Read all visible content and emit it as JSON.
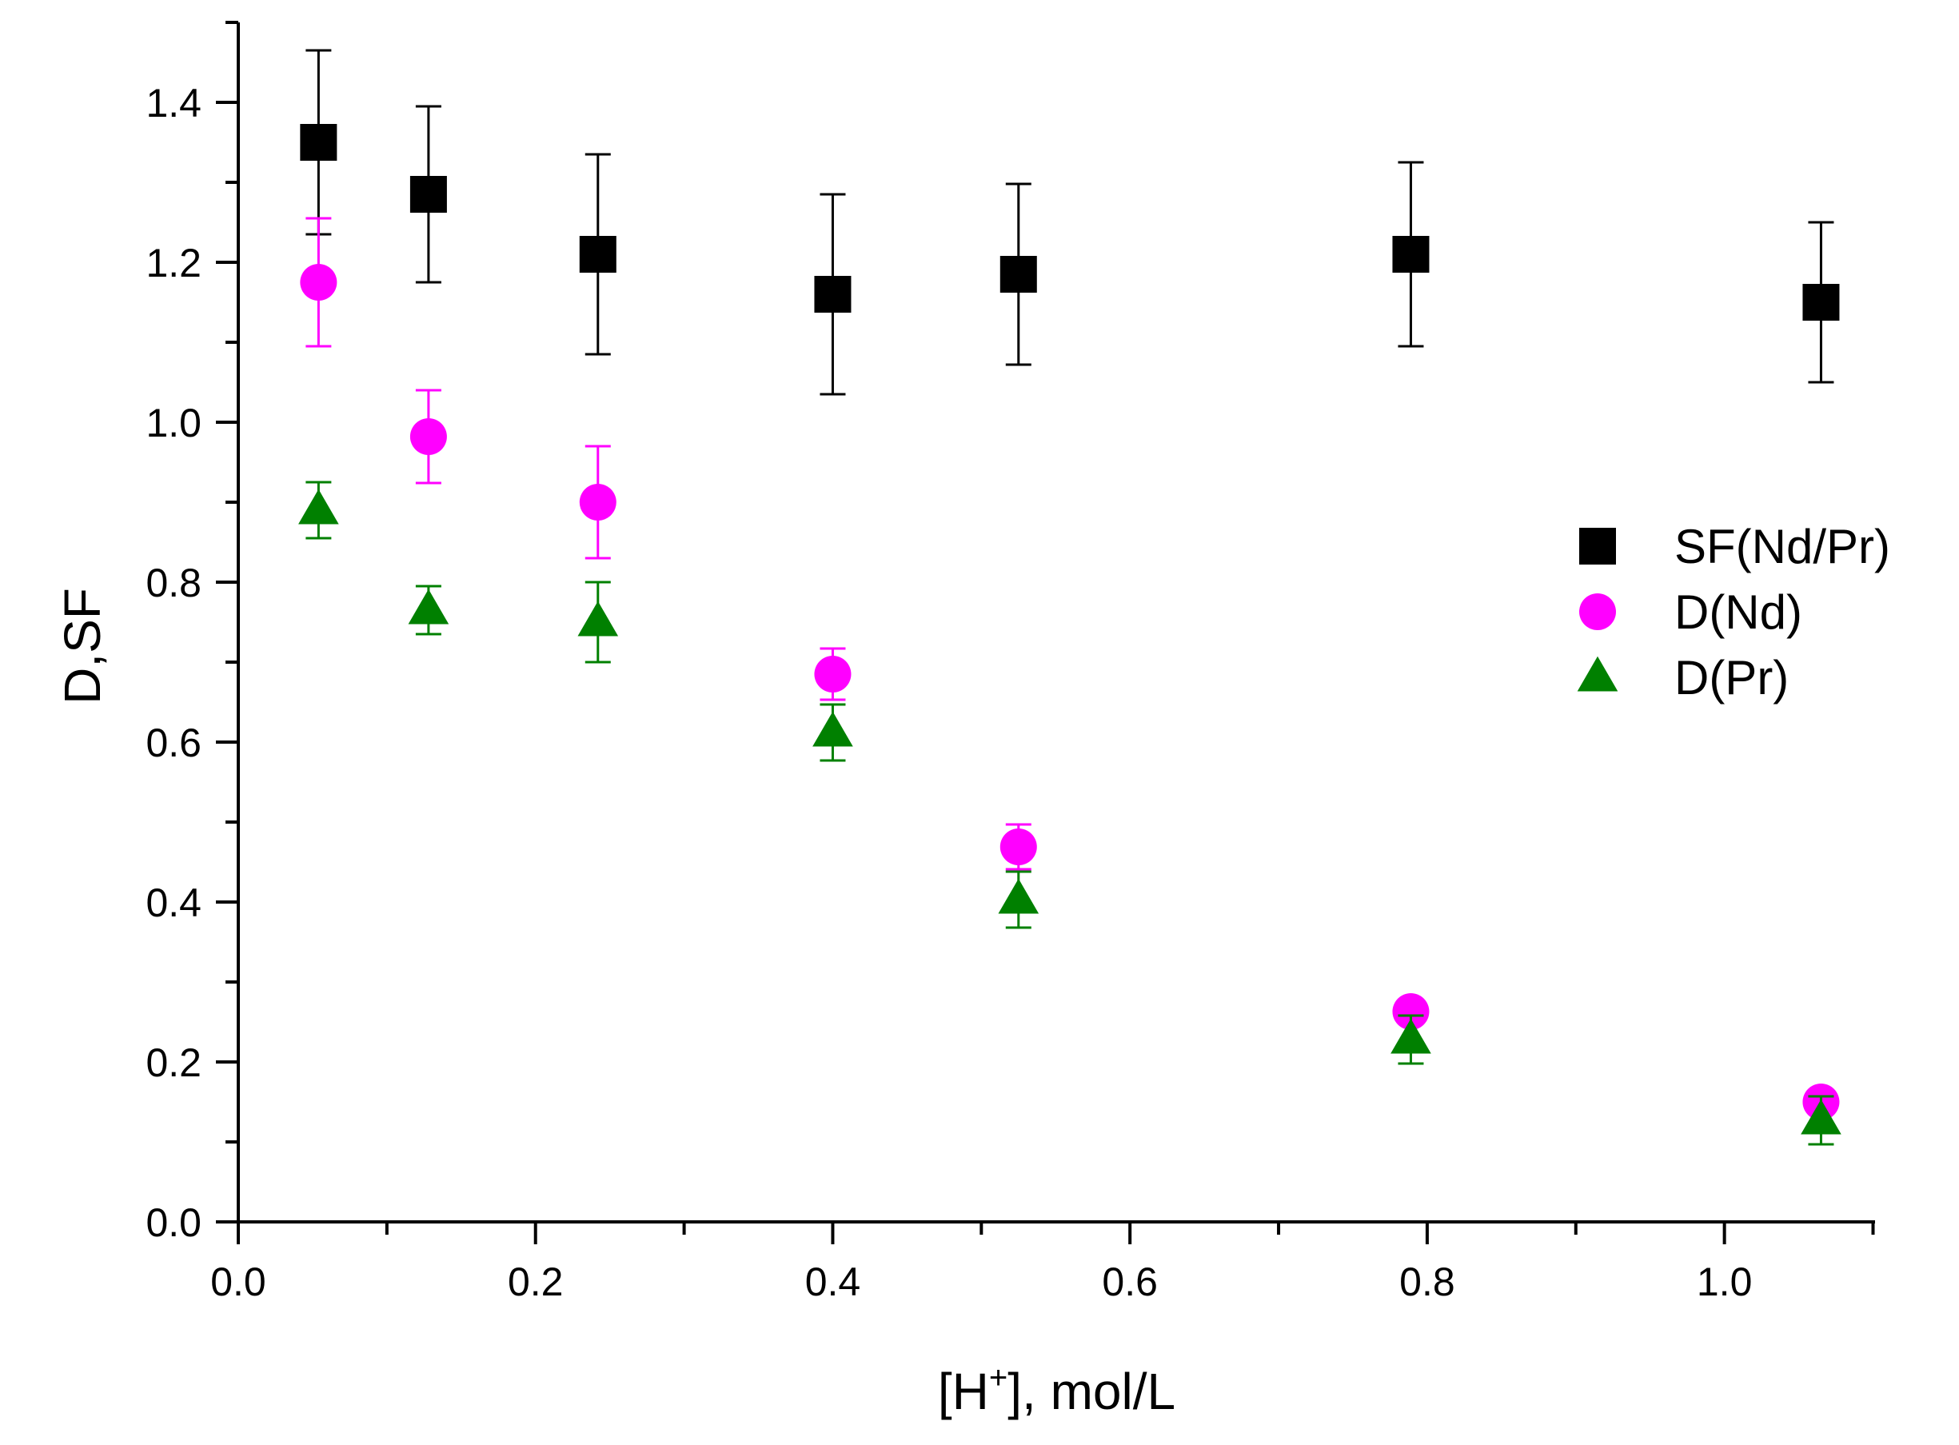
{
  "chart_data": {
    "type": "scatter",
    "title": "",
    "xlabel": {
      "prefix": "[H",
      "sup": "+",
      "suffix": "], mol/L"
    },
    "ylabel": "D,SF",
    "xlim": [
      0.0,
      1.1
    ],
    "ylim": [
      0.0,
      1.5
    ],
    "x_ticks": [
      "0.0",
      "0.2",
      "0.4",
      "0.6",
      "0.8",
      "1.0"
    ],
    "y_ticks": [
      "0.0",
      "0.2",
      "0.4",
      "0.6",
      "0.8",
      "1.0",
      "1.2",
      "1.4"
    ],
    "grid": false,
    "legend_position": "right",
    "series": [
      {
        "name": "SF(Nd/Pr)",
        "marker": "square",
        "color": "#000000",
        "points": [
          {
            "x": 0.054,
            "y": 1.35,
            "err_low": 0.115,
            "err_high": 0.115
          },
          {
            "x": 0.128,
            "y": 1.285,
            "err_low": 0.11,
            "err_high": 0.11
          },
          {
            "x": 0.242,
            "y": 1.21,
            "err_low": 0.125,
            "err_high": 0.125
          },
          {
            "x": 0.4,
            "y": 1.16,
            "err_low": 0.125,
            "err_high": 0.125
          },
          {
            "x": 0.525,
            "y": 1.185,
            "err_low": 0.113,
            "err_high": 0.113
          },
          {
            "x": 0.789,
            "y": 1.21,
            "err_low": 0.115,
            "err_high": 0.115
          },
          {
            "x": 1.065,
            "y": 1.15,
            "err_low": 0.1,
            "err_high": 0.1
          }
        ]
      },
      {
        "name": "D(Nd)",
        "marker": "circle",
        "color": "#ff00ff",
        "points": [
          {
            "x": 0.054,
            "y": 1.175,
            "err_low": 0.08,
            "err_high": 0.08
          },
          {
            "x": 0.128,
            "y": 0.982,
            "err_low": 0.058,
            "err_high": 0.058
          },
          {
            "x": 0.242,
            "y": 0.9,
            "err_low": 0.07,
            "err_high": 0.07
          },
          {
            "x": 0.4,
            "y": 0.685,
            "err_low": 0.032,
            "err_high": 0.032
          },
          {
            "x": 0.525,
            "y": 0.469,
            "err_low": 0.028,
            "err_high": 0.028
          },
          {
            "x": 0.789,
            "y": 0.263,
            "err_low": 0.0,
            "err_high": 0.0
          },
          {
            "x": 1.065,
            "y": 0.15,
            "err_low": 0.0,
            "err_high": 0.0
          }
        ]
      },
      {
        "name": "D(Pr)",
        "marker": "triangle",
        "color": "#008000",
        "points": [
          {
            "x": 0.054,
            "y": 0.89,
            "err_low": 0.035,
            "err_high": 0.035
          },
          {
            "x": 0.128,
            "y": 0.765,
            "err_low": 0.03,
            "err_high": 0.03
          },
          {
            "x": 0.242,
            "y": 0.75,
            "err_low": 0.05,
            "err_high": 0.05
          },
          {
            "x": 0.4,
            "y": 0.612,
            "err_low": 0.035,
            "err_high": 0.035
          },
          {
            "x": 0.525,
            "y": 0.403,
            "err_low": 0.035,
            "err_high": 0.035
          },
          {
            "x": 0.789,
            "y": 0.228,
            "err_low": 0.03,
            "err_high": 0.03
          },
          {
            "x": 1.065,
            "y": 0.127,
            "err_low": 0.03,
            "err_high": 0.03
          }
        ]
      }
    ]
  }
}
